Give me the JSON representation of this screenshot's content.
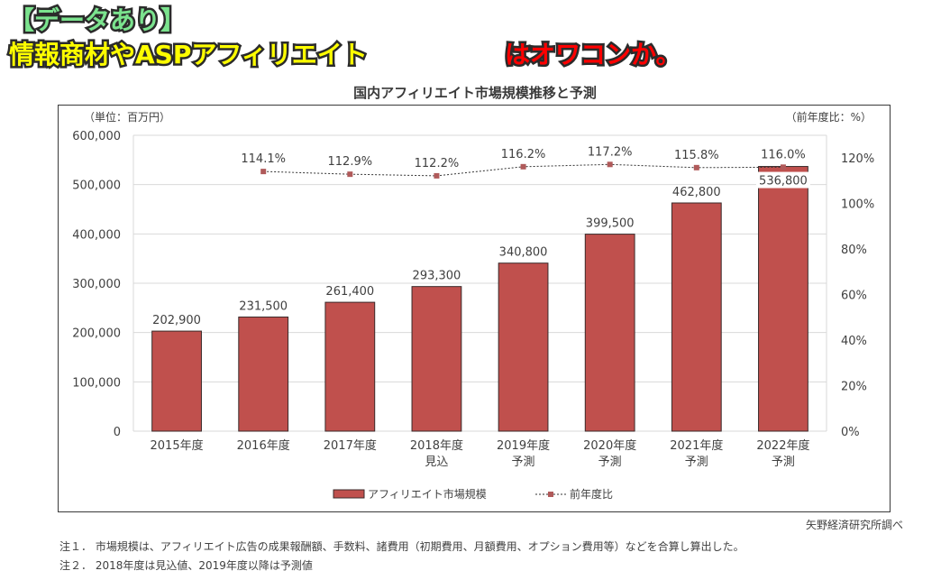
{
  "page": {
    "source": "矢野経済研究所調べ",
    "notes": [
      "注１． 市場規模は、アフィリエイト広告の成果報酬額、手数料、諸費用（初期費用、月額費用、オプション費用等）などを合算し算出した。",
      "注２． 2018年度は見込値、2019年度以降は予測値"
    ]
  },
  "overlay": {
    "line1": "【データあり】",
    "line2": "情報商材やASPアフィリエイト",
    "line3": "はオワコンか。",
    "colors": {
      "line1": "#7be38e",
      "line2": "#ffff00",
      "line3": "#ff0000",
      "stroke": "#2b2b2b"
    }
  },
  "chart_data": {
    "type": "bar",
    "title": "国内アフィリエイト市場規模推移と予測",
    "ylabel": "（単位：百万円）",
    "y2label": "（前年度比：%）",
    "categories": [
      "2015年度",
      "2016年度",
      "2017年度",
      "2018年度",
      "2019年度",
      "2020年度",
      "2021年度",
      "2022年度"
    ],
    "category_sublabels": [
      "",
      "",
      "",
      "見込",
      "予測",
      "予測",
      "予測",
      "予測"
    ],
    "ylim": [
      0,
      600000
    ],
    "yticks": [
      "0",
      "100,000",
      "200,000",
      "300,000",
      "400,000",
      "500,000",
      "600,000"
    ],
    "y2lim": [
      0,
      130
    ],
    "y2ticks": [
      "0%",
      "20%",
      "40%",
      "60%",
      "80%",
      "100%",
      "120%"
    ],
    "grid": true,
    "legend_position": "bottom",
    "series": [
      {
        "name": "アフィリエイト市場規模",
        "type": "bar",
        "axis": "left",
        "color": "#c0504d",
        "values": [
          202900,
          231500,
          261400,
          293300,
          340800,
          399500,
          462800,
          536800
        ],
        "labels": [
          "202,900",
          "231,500",
          "261,400",
          "293,300",
          "340,800",
          "399,500",
          "462,800",
          "536,800"
        ]
      },
      {
        "name": "前年度比",
        "type": "line",
        "axis": "right",
        "color": "#b05a5a",
        "values": [
          null,
          114.1,
          112.9,
          112.2,
          116.2,
          117.2,
          115.8,
          116.0
        ],
        "labels": [
          "",
          "114.1%",
          "112.9%",
          "112.2%",
          "116.2%",
          "117.2%",
          "115.8%",
          "116.0%"
        ]
      }
    ]
  }
}
